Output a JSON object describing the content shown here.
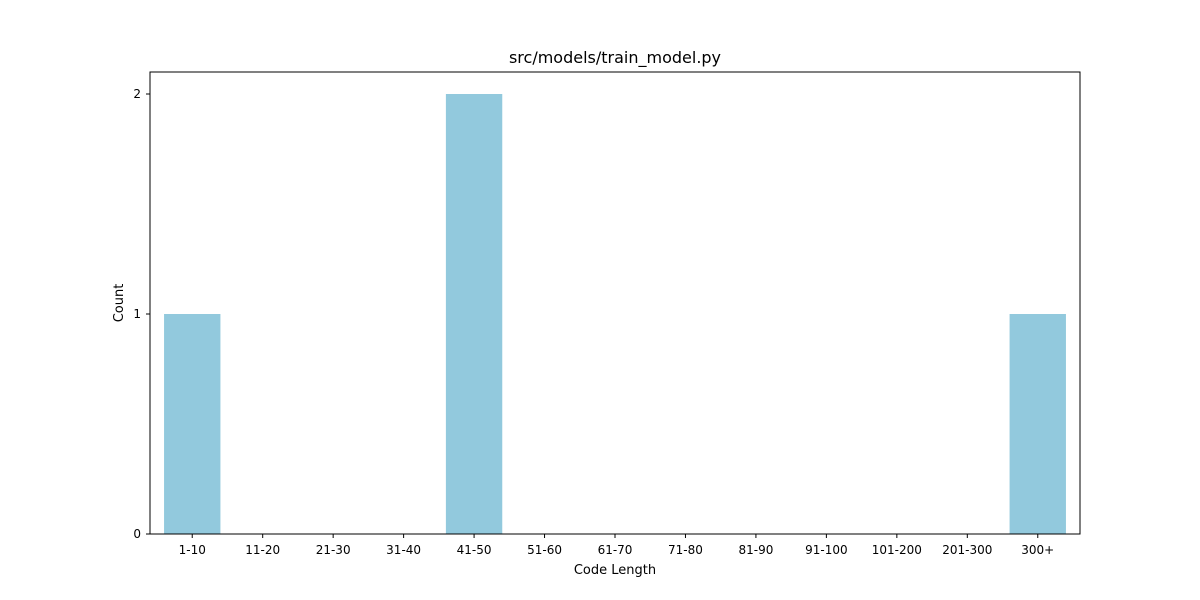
{
  "chart_data": {
    "type": "bar",
    "title": "src/models/train_model.py",
    "xlabel": "Code Length",
    "ylabel": "Count",
    "categories": [
      "1-10",
      "11-20",
      "21-30",
      "31-40",
      "41-50",
      "51-60",
      "61-70",
      "71-80",
      "81-90",
      "91-100",
      "101-200",
      "201-300",
      "300+"
    ],
    "values": [
      1,
      0,
      0,
      0,
      2,
      0,
      0,
      0,
      0,
      0,
      0,
      0,
      1
    ],
    "ylim": [
      0,
      2.1
    ],
    "yticks": [
      0,
      1,
      2
    ],
    "grid": false,
    "bar_color": "#92c9dd"
  }
}
